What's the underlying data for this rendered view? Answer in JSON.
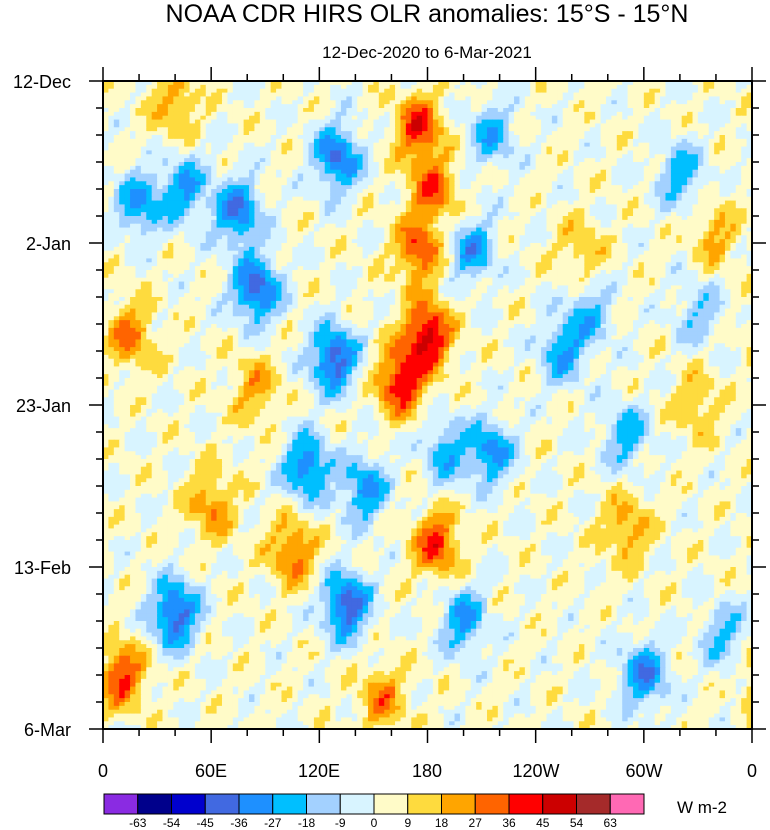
{
  "chart_data": {
    "type": "heatmap",
    "title": "NOAA CDR HIRS OLR anomalies: 15°S - 15°N",
    "subtitle": "12-Dec-2020 to 6-Mar-2021",
    "x_ticks": [
      "0",
      "60E",
      "120E",
      "180",
      "120W",
      "60W",
      "0"
    ],
    "x_tick_values": [
      0,
      60,
      120,
      180,
      240,
      300,
      360
    ],
    "x_range": [
      0,
      360
    ],
    "y_ticks": [
      "12-Dec",
      "2-Jan",
      "23-Jan",
      "13-Feb",
      "6-Mar"
    ],
    "y_tick_days": [
      0,
      21,
      42,
      63,
      84
    ],
    "y_range_days": [
      0,
      84
    ],
    "colorbar": {
      "labels": [
        "-63",
        "-54",
        "-45",
        "-36",
        "-27",
        "-18",
        "-9",
        "0",
        "9",
        "18",
        "27",
        "36",
        "45",
        "54",
        "63"
      ],
      "colors": [
        "#8a2be2",
        "#00008b",
        "#0000cd",
        "#4169e1",
        "#1e90ff",
        "#00bfff",
        "#a3d1ff",
        "#d8f4ff",
        "#fffbc8",
        "#fedb3e",
        "#ffa500",
        "#ff6400",
        "#ff0000",
        "#cc0000",
        "#a52a2a",
        "#ff69b4"
      ],
      "units": "W m-2"
    },
    "anomaly_features": [
      {
        "lon": 85,
        "day": 27,
        "value": -45
      },
      {
        "lon": 75,
        "day": 17,
        "value": -38
      },
      {
        "lon": 130,
        "day": 10,
        "value": -40
      },
      {
        "lon": 128,
        "day": 36,
        "value": -45
      },
      {
        "lon": 113,
        "day": 50,
        "value": -38
      },
      {
        "lon": 145,
        "day": 53,
        "value": -32
      },
      {
        "lon": 135,
        "day": 68,
        "value": -45
      },
      {
        "lon": 40,
        "day": 69,
        "value": -45
      },
      {
        "lon": 45,
        "day": 14,
        "value": -30
      },
      {
        "lon": 20,
        "day": 16,
        "value": -30
      },
      {
        "lon": 205,
        "day": 22,
        "value": -30
      },
      {
        "lon": 215,
        "day": 48,
        "value": -32
      },
      {
        "lon": 190,
        "day": 48,
        "value": -25
      },
      {
        "lon": 255,
        "day": 35,
        "value": -28
      },
      {
        "lon": 270,
        "day": 30,
        "value": -22
      },
      {
        "lon": 290,
        "day": 46,
        "value": -25
      },
      {
        "lon": 200,
        "day": 70,
        "value": -30
      },
      {
        "lon": 300,
        "day": 77,
        "value": -35
      },
      {
        "lon": 320,
        "day": 12,
        "value": -25
      },
      {
        "lon": 345,
        "day": 72,
        "value": -22
      },
      {
        "lon": 215,
        "day": 7,
        "value": -25
      },
      {
        "lon": 330,
        "day": 30,
        "value": -18
      },
      {
        "lon": 175,
        "day": 6,
        "value": 38
      },
      {
        "lon": 183,
        "day": 14,
        "value": 30
      },
      {
        "lon": 175,
        "day": 22,
        "value": 33
      },
      {
        "lon": 180,
        "day": 33,
        "value": 48
      },
      {
        "lon": 165,
        "day": 39,
        "value": 42
      },
      {
        "lon": 185,
        "day": 60,
        "value": 36
      },
      {
        "lon": 105,
        "day": 61,
        "value": 30
      },
      {
        "lon": 15,
        "day": 33,
        "value": 27
      },
      {
        "lon": 60,
        "day": 55,
        "value": 24
      },
      {
        "lon": 10,
        "day": 77,
        "value": 36
      },
      {
        "lon": 155,
        "day": 80,
        "value": 24
      },
      {
        "lon": 290,
        "day": 58,
        "value": 22
      },
      {
        "lon": 340,
        "day": 20,
        "value": 18
      },
      {
        "lon": 330,
        "day": 42,
        "value": 16
      },
      {
        "lon": 265,
        "day": 22,
        "value": 16
      },
      {
        "lon": 40,
        "day": 3,
        "value": 20
      },
      {
        "lon": 85,
        "day": 40,
        "value": 20
      }
    ]
  }
}
